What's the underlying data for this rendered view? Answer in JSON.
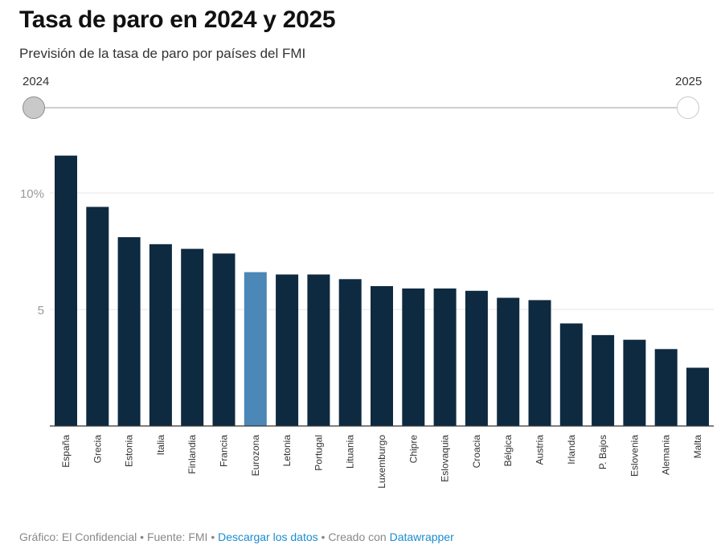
{
  "title": "Tasa de paro en 2024 y 2025",
  "subtitle": "Previsión de la tasa de paro por países del FMI",
  "slider": {
    "start_label": "2024",
    "end_label": "2025",
    "selected": "2024"
  },
  "colors": {
    "bar": "#0e2a40",
    "highlight": "#4b87b7",
    "grid": "#e6e6e6",
    "axis_text": "#999999",
    "link": "#1a8ccf"
  },
  "chart_data": {
    "type": "bar",
    "categories": [
      "España",
      "Grecia",
      "Estonia",
      "Italia",
      "Finlandia",
      "Francia",
      "Eurozona",
      "Letonia",
      "Portugal",
      "Lituania",
      "Luxemburgo",
      "Chipre",
      "Eslovaquia",
      "Croacia",
      "Bélgica",
      "Austria",
      "Irlanda",
      "P. Bajos",
      "Eslovenia",
      "Alemania",
      "Malta"
    ],
    "values": [
      11.6,
      9.4,
      8.1,
      7.8,
      7.6,
      7.4,
      6.6,
      6.5,
      6.5,
      6.3,
      6.0,
      5.9,
      5.9,
      5.8,
      5.5,
      5.4,
      4.4,
      3.9,
      3.7,
      3.3,
      2.5
    ],
    "highlight": "Eurozona",
    "yticks": [
      {
        "value": 5,
        "label": "5"
      },
      {
        "value": 10,
        "label": "10%"
      }
    ],
    "ylim": [
      0,
      12.5
    ],
    "grid": true,
    "xlabel": "",
    "ylabel": ""
  },
  "footer": {
    "prefix": "Gráfico: El Confidencial • Fuente: FMI • ",
    "download_link": "Descargar los datos",
    "middle": " • Creado con ",
    "tool_link": "Datawrapper"
  }
}
